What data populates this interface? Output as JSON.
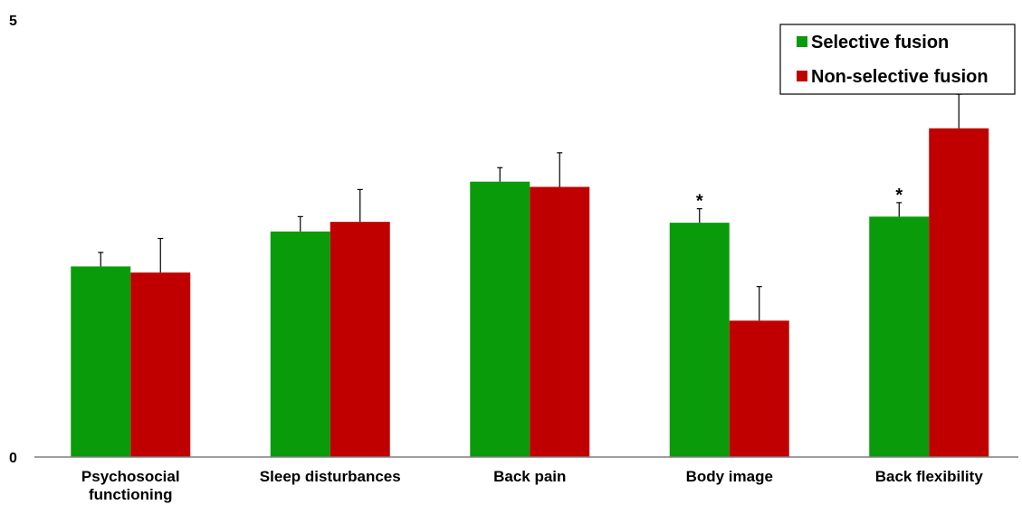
{
  "chart_data": {
    "type": "bar",
    "title": "",
    "xlabel": "",
    "ylabel": "",
    "ylim": [
      0,
      5
    ],
    "yticks": [
      0,
      5
    ],
    "categories": [
      "Psychosocial functioning",
      "Sleep disturbances",
      "Back pain",
      "Body image",
      "Back flexibility"
    ],
    "category_lines": [
      [
        "Psychosocial",
        "functioning"
      ],
      [
        "Sleep disturbances"
      ],
      [
        "Back pain"
      ],
      [
        "Body image"
      ],
      [
        "Back flexibility"
      ]
    ],
    "series": [
      {
        "name": "Selective fusion",
        "color": "#0a9b0a",
        "values": [
          2.18,
          2.58,
          3.15,
          2.68,
          2.75
        ],
        "errors": [
          0.16,
          0.17,
          0.16,
          0.16,
          0.16
        ]
      },
      {
        "name": "Non-selective fusion",
        "color": "#c00000",
        "values": [
          2.11,
          2.69,
          3.09,
          1.56,
          3.76
        ],
        "errors": [
          0.39,
          0.37,
          0.39,
          0.39,
          0.39
        ]
      }
    ],
    "annotations": [
      {
        "category_index": 3,
        "series_index": 0,
        "text": "*"
      },
      {
        "category_index": 4,
        "series_index": 0,
        "text": "*"
      }
    ],
    "legend": {
      "position": "top-right",
      "frame": true
    },
    "grid": false
  }
}
